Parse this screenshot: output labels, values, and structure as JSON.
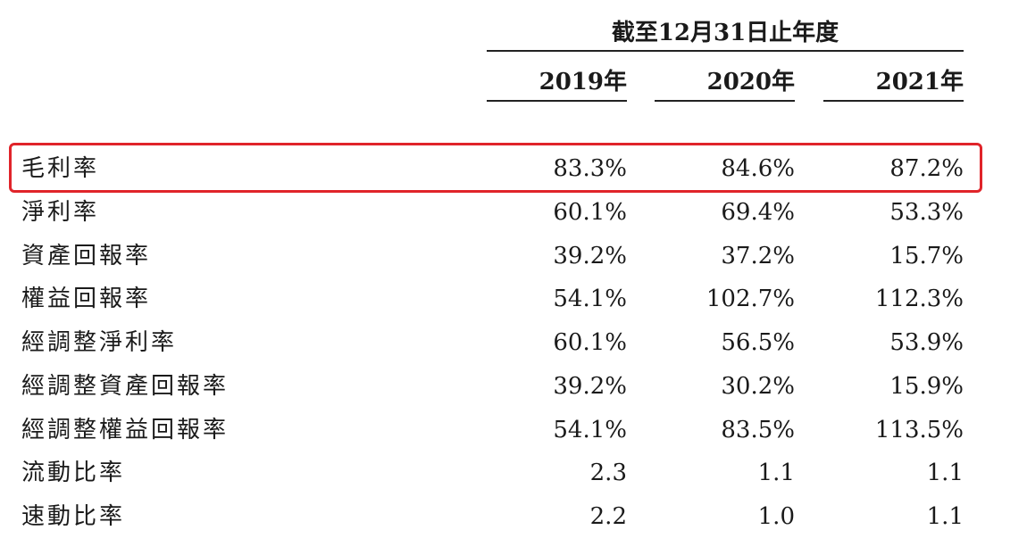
{
  "header": {
    "period": "截至12月31日止年度",
    "years": [
      "2019年",
      "2020年",
      "2021年"
    ]
  },
  "rows": [
    {
      "label": "毛利率",
      "values": [
        "83.3%",
        "84.6%",
        "87.2%"
      ],
      "highlighted": true
    },
    {
      "label": "淨利率",
      "values": [
        "60.1%",
        "69.4%",
        "53.3%"
      ]
    },
    {
      "label": "資產回報率",
      "values": [
        "39.2%",
        "37.2%",
        "15.7%"
      ]
    },
    {
      "label": "權益回報率",
      "values": [
        "54.1%",
        "102.7%",
        "112.3%"
      ]
    },
    {
      "label": "經調整淨利率",
      "values": [
        "60.1%",
        "56.5%",
        "53.9%"
      ]
    },
    {
      "label": "經調整資產回報率",
      "values": [
        "39.2%",
        "30.2%",
        "15.9%"
      ]
    },
    {
      "label": "經調整權益回報率",
      "values": [
        "54.1%",
        "83.5%",
        "113.5%"
      ]
    },
    {
      "label": "流動比率",
      "values": [
        "2.3",
        "1.1",
        "1.1"
      ]
    },
    {
      "label": "速動比率",
      "values": [
        "2.2",
        "1.0",
        "1.1"
      ]
    }
  ],
  "colors": {
    "highlight_border": "#e0242a",
    "text": "#1a1a1a"
  }
}
